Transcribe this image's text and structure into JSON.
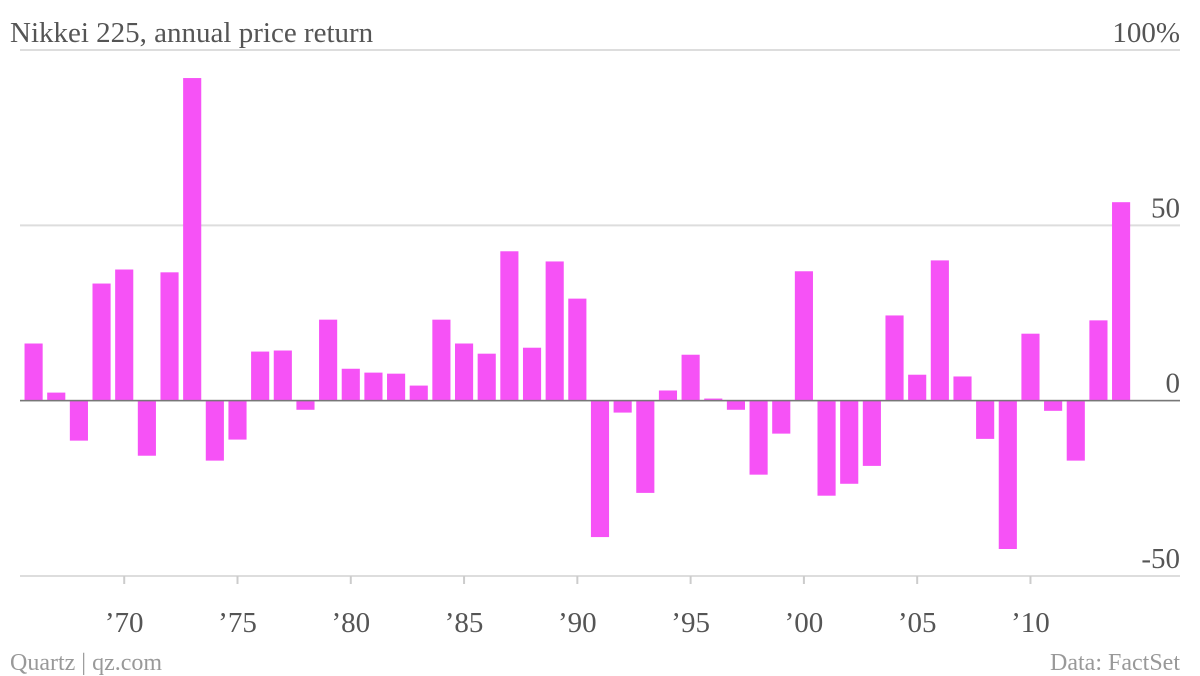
{
  "chart_data": {
    "type": "bar",
    "title": "Nikkei 225, annual price return",
    "source": "Data: FactSet",
    "credit": "Quartz | qz.com",
    "x": [
      1966,
      1967,
      1968,
      1969,
      1970,
      1971,
      1972,
      1973,
      1974,
      1975,
      1976,
      1977,
      1978,
      1979,
      1980,
      1981,
      1982,
      1983,
      1984,
      1985,
      1986,
      1987,
      1988,
      1989,
      1990,
      1991,
      1992,
      1993,
      1994,
      1995,
      1996,
      1997,
      1998,
      1999,
      2000,
      2001,
      2002,
      2003,
      2004,
      2005,
      2006,
      2007,
      2008,
      2009,
      2010,
      2011,
      2012,
      2013,
      2014
    ],
    "values": [
      16.3,
      2.3,
      -11.4,
      33.4,
      37.4,
      -15.7,
      36.6,
      92,
      -17.1,
      -11.1,
      14,
      14.3,
      -2.6,
      23.1,
      9.1,
      8,
      7.7,
      4.3,
      23.1,
      16.3,
      13.4,
      42.6,
      15.1,
      39.7,
      29.1,
      -38.9,
      -3.4,
      -26.3,
      2.9,
      13.1,
      0.6,
      -2.6,
      -21.1,
      -9.4,
      36.9,
      -27.1,
      -23.7,
      -18.6,
      24.3,
      7.4,
      40,
      6.9,
      -10.9,
      -42.3,
      19.1,
      -2.9,
      -17.1,
      22.9,
      56.6
    ],
    "color": "#f652f6",
    "xlim": [
      1965.4,
      2016.6
    ],
    "xticks": [
      {
        "value": 1970,
        "label": "’70"
      },
      {
        "value": 1975,
        "label": "’75"
      },
      {
        "value": 1980,
        "label": "’80"
      },
      {
        "value": 1985,
        "label": "’85"
      },
      {
        "value": 1990,
        "label": "’90"
      },
      {
        "value": 1995,
        "label": "’95"
      },
      {
        "value": 2000,
        "label": "’00"
      },
      {
        "value": 2005,
        "label": "’05"
      },
      {
        "value": 2010,
        "label": "’10"
      }
    ],
    "ylim": [
      -50,
      100
    ],
    "yticks": [
      -50,
      0,
      50,
      {
        "value": 100,
        "label": "100%"
      }
    ],
    "grid": true
  }
}
